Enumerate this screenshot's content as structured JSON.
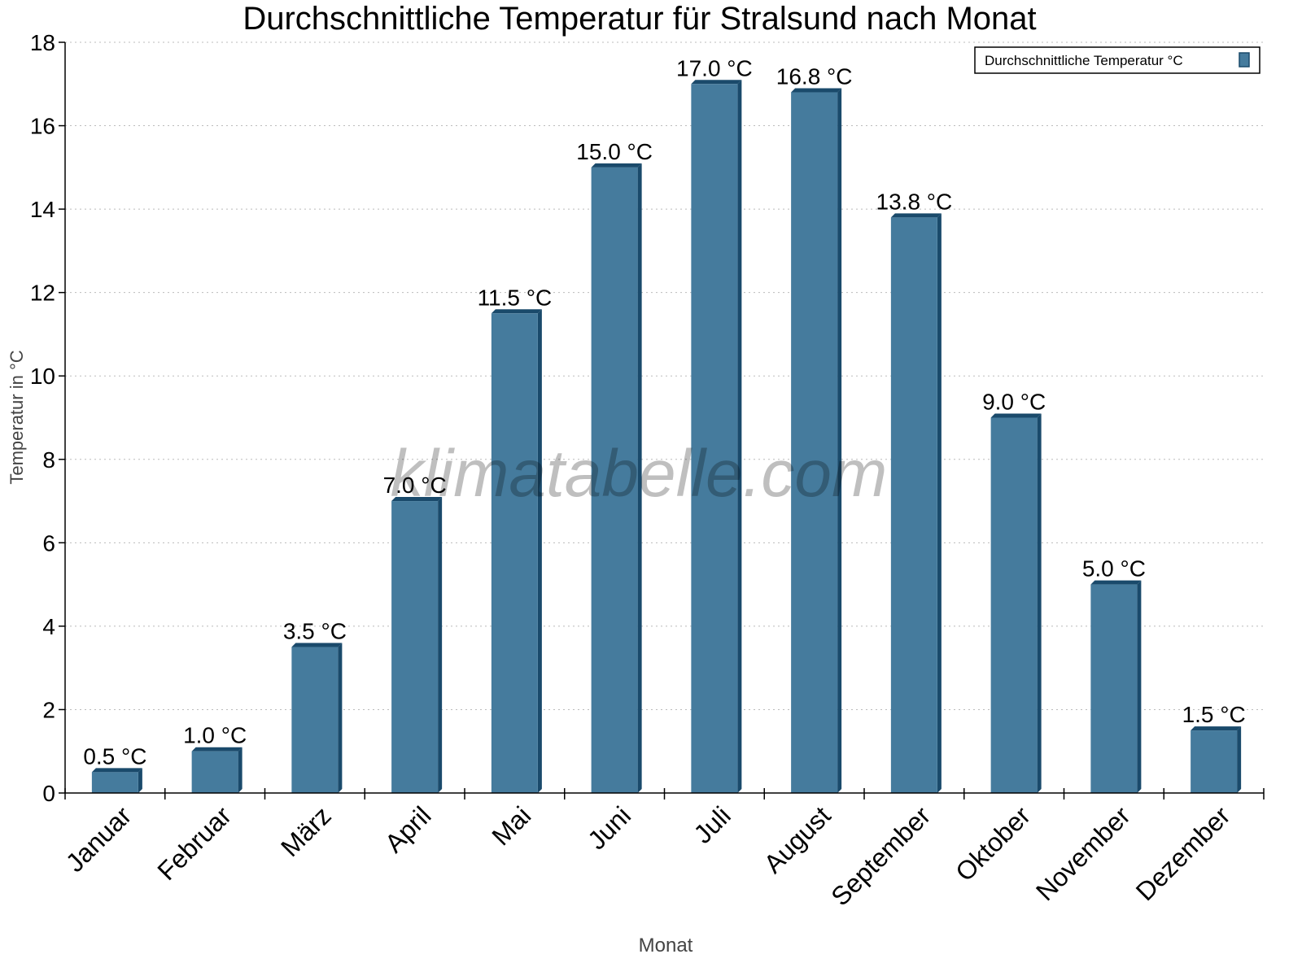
{
  "chart_data": {
    "type": "bar",
    "title": "Durchschnittliche Temperatur für Stralsund nach Monat",
    "xlabel": "Monat",
    "ylabel": "Temperatur in °C",
    "categories": [
      "Januar",
      "Februar",
      "März",
      "April",
      "Mai",
      "Juni",
      "Juli",
      "August",
      "September",
      "Oktober",
      "November",
      "Dezember"
    ],
    "series": [
      {
        "name": "Durchschnittliche Temperatur °C",
        "values": [
          0.5,
          1.0,
          3.5,
          7.0,
          11.5,
          15.0,
          17.0,
          16.8,
          13.8,
          9.0,
          5.0,
          1.5
        ],
        "labels": [
          "0.5 °C",
          "1.0 °C",
          "3.5 °C",
          "7.0 °C",
          "11.5 °C",
          "15.0 °C",
          "17.0 °C",
          "16.8 °C",
          "13.8 °C",
          "9.0 °C",
          "5.0 °C",
          "1.5 °C"
        ],
        "color": "#457b9d",
        "side_color": "#1a4a6b"
      }
    ],
    "ylim": [
      0,
      18
    ],
    "yticks": [
      0,
      2,
      4,
      6,
      8,
      10,
      12,
      14,
      16,
      18
    ],
    "grid": true,
    "legend_position": "top-right",
    "watermark": "klimatabelle.com"
  }
}
